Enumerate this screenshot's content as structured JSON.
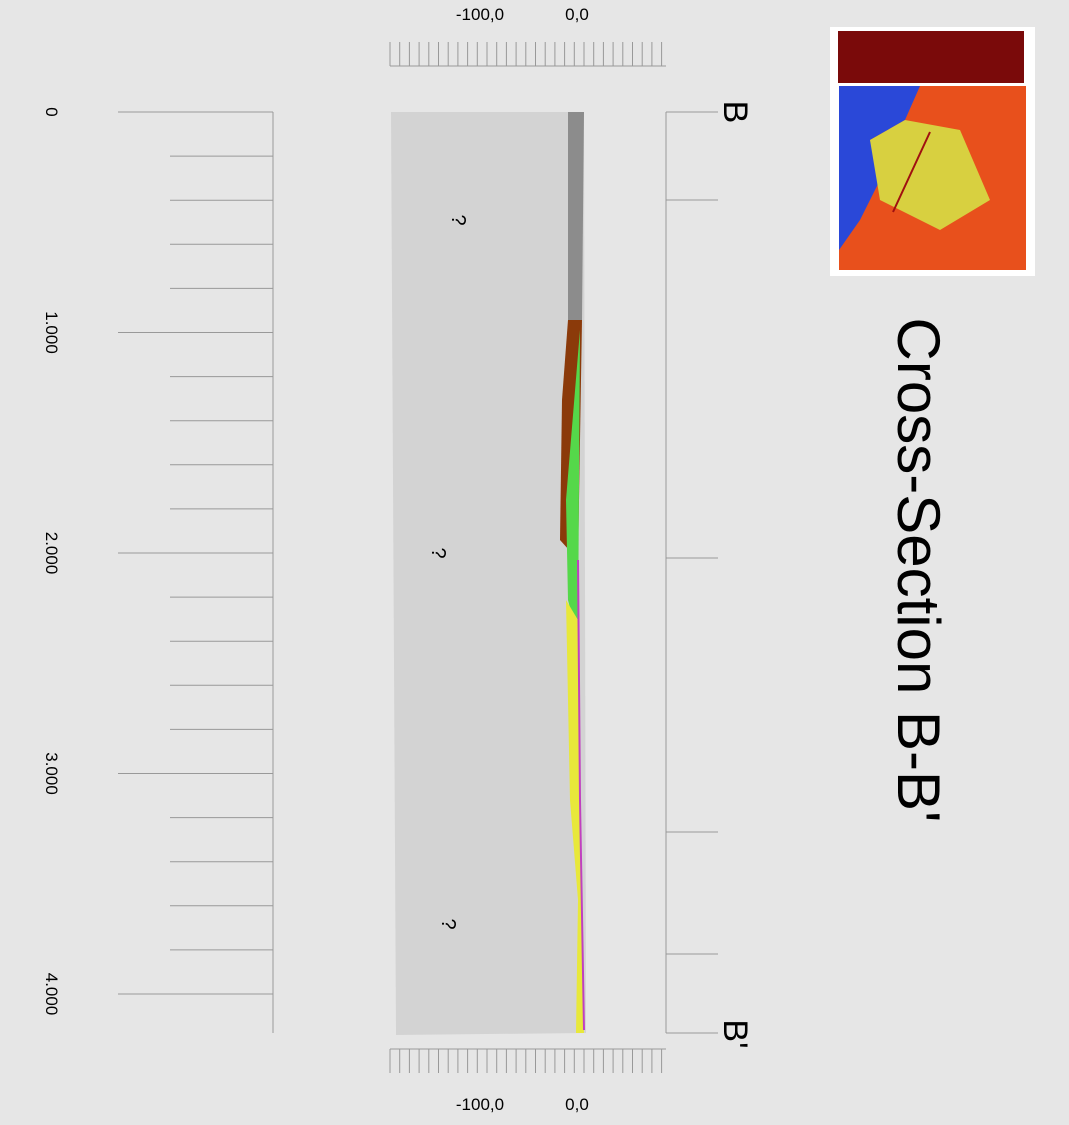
{
  "title": "Cross-Section B-B'",
  "section_ends": {
    "start": "B",
    "end": "B'"
  },
  "depth_axis": {
    "top_labels": [
      "-100,0",
      "0,0"
    ],
    "bottom_labels": [
      "-100,0",
      "0,0"
    ]
  },
  "distance_axis": {
    "labels": [
      "0",
      "1.000",
      "2.000",
      "3.000",
      "4.000"
    ]
  },
  "unknown_marks": [
    "?",
    "?",
    "?"
  ]
}
